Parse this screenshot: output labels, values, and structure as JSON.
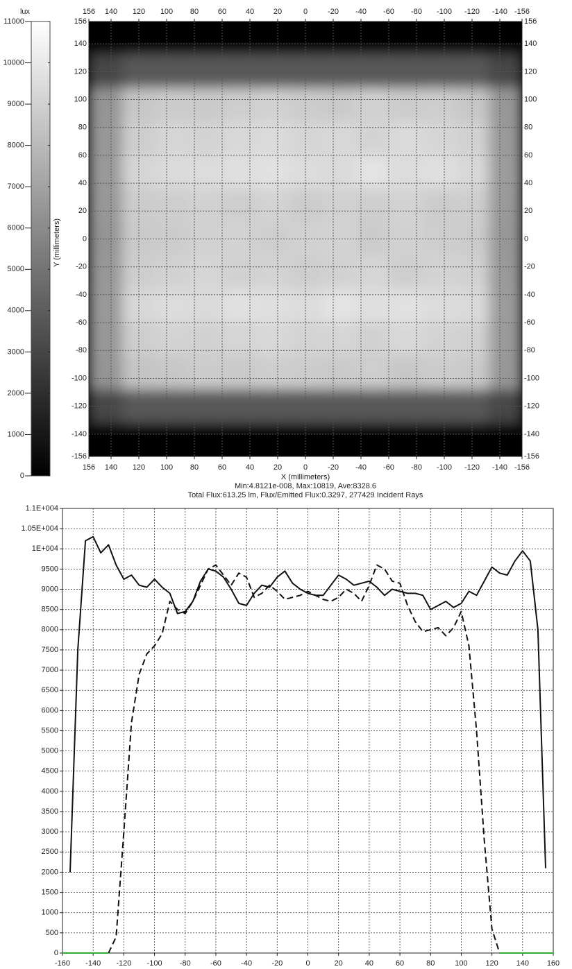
{
  "chart_data": [
    {
      "type": "heatmap",
      "colorbar_label": "lux",
      "xlabel": "X (millimeters)",
      "ylabel": "Y (millimeters)",
      "annotations": [
        "Min:4.8121e-008, Max:10819, Ave:8328.6",
        "Total Flux:613.25 lm, Flux/Emitted Flux:0.3297, 277429 Incident Rays"
      ],
      "xlim": [
        156,
        -156
      ],
      "ylim": [
        -156,
        156
      ],
      "xticks": [
        156,
        140,
        120,
        100,
        80,
        60,
        40,
        20,
        0,
        -20,
        -40,
        -60,
        -80,
        -100,
        -120,
        -140,
        -156
      ],
      "yticks": [
        156,
        140,
        120,
        100,
        80,
        60,
        40,
        20,
        0,
        -20,
        -40,
        -60,
        -80,
        -100,
        -120,
        -140,
        -156
      ],
      "clim": [
        0,
        11000
      ],
      "cticks": [
        0,
        1000,
        2000,
        3000,
        4000,
        5000,
        6000,
        7000,
        8000,
        9000,
        10000,
        11000
      ],
      "colormap": "gray",
      "grid": true,
      "x": [
        -144,
        -120,
        -96,
        -72,
        -48,
        -24,
        0,
        24,
        48,
        72,
        96,
        120,
        144
      ],
      "y": [
        144,
        120,
        96,
        72,
        48,
        24,
        0,
        -24,
        -48,
        -72,
        -96,
        -120,
        -144
      ],
      "z": [
        [
          0,
          0,
          0,
          0,
          0,
          0,
          0,
          0,
          0,
          0,
          0,
          0,
          0
        ],
        [
          3000,
          3800,
          3800,
          3800,
          3800,
          3800,
          3800,
          3800,
          3800,
          3800,
          3800,
          3800,
          3000
        ],
        [
          6500,
          8600,
          8900,
          8800,
          9000,
          8700,
          8800,
          9000,
          8900,
          8700,
          8800,
          8600,
          6400
        ],
        [
          6600,
          9000,
          9200,
          9400,
          9100,
          9300,
          9200,
          9400,
          9300,
          9100,
          9200,
          8900,
          6500
        ],
        [
          6700,
          9300,
          9600,
          9500,
          9800,
          9400,
          9500,
          9700,
          9600,
          9500,
          9400,
          9200,
          6600
        ],
        [
          6600,
          8900,
          8800,
          9100,
          8900,
          9000,
          8800,
          9100,
          8900,
          9000,
          8900,
          8800,
          6500
        ],
        [
          6500,
          8800,
          8900,
          9000,
          8800,
          9100,
          9000,
          8900,
          9100,
          9000,
          8800,
          8700,
          6400
        ],
        [
          6600,
          9000,
          9100,
          8900,
          9200,
          9000,
          8900,
          9100,
          9000,
          9200,
          9000,
          8900,
          6500
        ],
        [
          6700,
          9400,
          9500,
          9700,
          9600,
          9800,
          9500,
          9600,
          9700,
          9400,
          9500,
          9300,
          6600
        ],
        [
          6600,
          9000,
          9100,
          9300,
          9000,
          9200,
          9100,
          9300,
          9200,
          9000,
          9100,
          8900,
          6500
        ],
        [
          6500,
          8700,
          8800,
          8600,
          8900,
          8700,
          8800,
          8900,
          8700,
          8800,
          8600,
          8500,
          6400
        ],
        [
          3000,
          3800,
          3800,
          3800,
          3800,
          3800,
          3800,
          3800,
          3800,
          3800,
          3800,
          3800,
          3000
        ],
        [
          0,
          0,
          0,
          0,
          0,
          0,
          0,
          0,
          0,
          0,
          0,
          0,
          0
        ]
      ]
    },
    {
      "type": "line",
      "xlim": [
        -160,
        160
      ],
      "ylim": [
        0,
        11000
      ],
      "grid": true,
      "xticks": [
        -160,
        -140,
        -120,
        -100,
        -80,
        -60,
        -40,
        -20,
        0,
        20,
        40,
        60,
        80,
        100,
        120,
        140,
        160
      ],
      "yticks": [
        0,
        500,
        1000,
        1500,
        2000,
        2500,
        3000,
        3500,
        4000,
        4500,
        5000,
        5500,
        6000,
        6500,
        7000,
        7500,
        8000,
        8500,
        9000,
        9500,
        {
          "value": 10000,
          "label": "1E+004"
        },
        {
          "value": 10500,
          "label": "1.05E+004"
        },
        {
          "value": 11000,
          "label": "1.1E+004"
        }
      ],
      "x": [
        -160,
        -155,
        -150,
        -145,
        -140,
        -135,
        -130,
        -125,
        -120,
        -115,
        -110,
        -105,
        -100,
        -95,
        -90,
        -85,
        -80,
        -75,
        -70,
        -65,
        -60,
        -55,
        -50,
        -45,
        -40,
        -35,
        -30,
        -25,
        -20,
        -15,
        -10,
        -5,
        0,
        5,
        10,
        15,
        20,
        25,
        30,
        35,
        40,
        45,
        50,
        55,
        60,
        65,
        70,
        75,
        80,
        85,
        90,
        95,
        100,
        105,
        110,
        115,
        120,
        125,
        130,
        135,
        140,
        145,
        150,
        155,
        160
      ],
      "series": [
        {
          "color": "#111111",
          "linestyle": "solid",
          "values": [
            null,
            2000,
            7500,
            10200,
            10300,
            9900,
            10100,
            9600,
            9250,
            9350,
            9100,
            9050,
            9250,
            9050,
            8900,
            8400,
            8450,
            8700,
            9200,
            9500,
            9450,
            9300,
            9000,
            8650,
            8600,
            8900,
            9100,
            9050,
            9300,
            9450,
            9150,
            9000,
            8900,
            8850,
            8850,
            9100,
            9350,
            9250,
            9100,
            9150,
            9200,
            9050,
            8850,
            9000,
            8950,
            8900,
            8900,
            8850,
            8500,
            8600,
            8700,
            8550,
            8650,
            8950,
            8850,
            9200,
            9550,
            9400,
            9350,
            9700,
            9950,
            9700,
            8000,
            2100,
            null
          ]
        },
        {
          "color": "#111111",
          "linestyle": "dashed",
          "values": [
            null,
            null,
            null,
            null,
            null,
            null,
            0,
            400,
            3000,
            5700,
            6900,
            7400,
            7600,
            7900,
            8700,
            8500,
            8400,
            8700,
            9100,
            9500,
            9600,
            9350,
            9100,
            9400,
            9300,
            8800,
            8900,
            9100,
            8950,
            8750,
            8800,
            8850,
            8950,
            8850,
            8750,
            8700,
            8800,
            9000,
            8900,
            8700,
            9100,
            9600,
            9500,
            9200,
            9150,
            8600,
            8200,
            7950,
            8000,
            8050,
            7850,
            8050,
            8450,
            7600,
            5500,
            2800,
            600,
            0,
            null,
            null,
            null,
            null,
            null,
            null,
            null
          ]
        },
        {
          "color": "#33aa33",
          "linestyle": "solid",
          "values": [
            0,
            0,
            0,
            0,
            0,
            0,
            0,
            null,
            null,
            null,
            null,
            null,
            null,
            null,
            null,
            null,
            null,
            null,
            null,
            null,
            null,
            null,
            null,
            null,
            null,
            null,
            null,
            null,
            null,
            null,
            null,
            null,
            null,
            null,
            null,
            null,
            null,
            null,
            null,
            null,
            null,
            null,
            null,
            null,
            null,
            null,
            null,
            null,
            null,
            null,
            null,
            null,
            null,
            null,
            null,
            null,
            null,
            0,
            0,
            0,
            0,
            0,
            0,
            0,
            0
          ]
        }
      ]
    }
  ]
}
